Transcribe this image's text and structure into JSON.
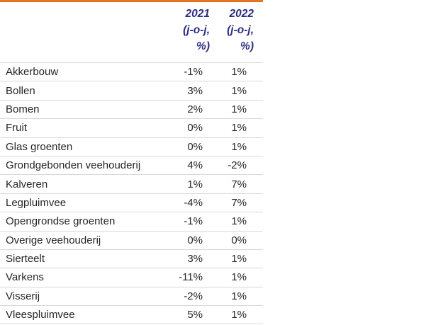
{
  "page": {
    "background": "#FFFFFF"
  },
  "table": {
    "accent_bar_color": "#E8731E",
    "header_text_color": "#2B2D83",
    "row_text_color": "#262626",
    "divider_color": "#D8D8D8",
    "header": {
      "name_col": "",
      "col_2021": {
        "lines": [
          "2021",
          "(j-o-j,",
          "%)"
        ]
      },
      "col_2022": {
        "lines": [
          "2022",
          "(j-o-j,",
          "%)"
        ]
      }
    },
    "rows": [
      {
        "name": "Akkerbouw",
        "v2021": "-1%",
        "v2022": "1%"
      },
      {
        "name": "Bollen",
        "v2021": "3%",
        "v2022": "1%"
      },
      {
        "name": "Bomen",
        "v2021": "2%",
        "v2022": "1%"
      },
      {
        "name": "Fruit",
        "v2021": "0%",
        "v2022": "1%"
      },
      {
        "name": "Glas groenten",
        "v2021": "0%",
        "v2022": "1%"
      },
      {
        "name": "Grondgebonden veehouderij",
        "v2021": "4%",
        "v2022": "-2%"
      },
      {
        "name": "Kalveren",
        "v2021": "1%",
        "v2022": "7%"
      },
      {
        "name": "Legpluimvee",
        "v2021": "-4%",
        "v2022": "7%"
      },
      {
        "name": "Opengrondse groenten",
        "v2021": "-1%",
        "v2022": "1%"
      },
      {
        "name": "Overige veehouderij",
        "v2021": "0%",
        "v2022": "0%"
      },
      {
        "name": "Sierteelt",
        "v2021": "3%",
        "v2022": "1%"
      },
      {
        "name": "Varkens",
        "v2021": "-11%",
        "v2022": "1%"
      },
      {
        "name": "Visserij",
        "v2021": "-2%",
        "v2022": "1%"
      },
      {
        "name": "Vleespluimvee",
        "v2021": "5%",
        "v2022": "1%"
      }
    ]
  },
  "chart_data": {
    "type": "table",
    "title": "",
    "columns": [
      "",
      "2021 (j-o-j, %)",
      "2022 (j-o-j, %)"
    ],
    "rows": [
      [
        "Akkerbouw",
        "-1%",
        "1%"
      ],
      [
        "Bollen",
        "3%",
        "1%"
      ],
      [
        "Bomen",
        "2%",
        "1%"
      ],
      [
        "Fruit",
        "0%",
        "1%"
      ],
      [
        "Glas groenten",
        "0%",
        "1%"
      ],
      [
        "Grondgebonden veehouderij",
        "4%",
        "-2%"
      ],
      [
        "Kalveren",
        "1%",
        "7%"
      ],
      [
        "Legpluimvee",
        "-4%",
        "7%"
      ],
      [
        "Opengrondse groenten",
        "-1%",
        "1%"
      ],
      [
        "Overige veehouderij",
        "0%",
        "0%"
      ],
      [
        "Sierteelt",
        "3%",
        "1%"
      ],
      [
        "Varkens",
        "-11%",
        "1%"
      ],
      [
        "Visserij",
        "-2%",
        "1%"
      ],
      [
        "Vleespluimvee",
        "5%",
        "1%"
      ]
    ]
  }
}
